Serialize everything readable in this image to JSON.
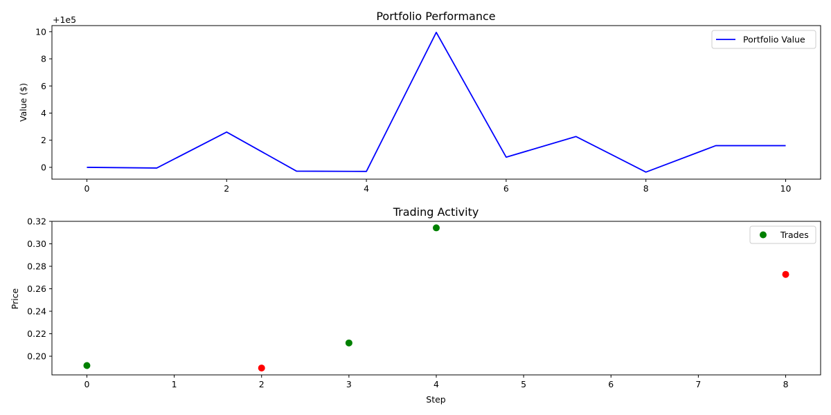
{
  "chart_data": [
    {
      "type": "line",
      "title": "Portfolio Performance",
      "xlabel": "",
      "ylabel": "Value ($)",
      "offset_label": "+1e5",
      "x": [
        0,
        1,
        2,
        3,
        4,
        5,
        6,
        7,
        8,
        9,
        10
      ],
      "series": [
        {
          "name": "Portfolio Value",
          "color": "#0000ff",
          "values": [
            0.0,
            -0.05,
            2.6,
            -0.28,
            -0.3,
            9.95,
            0.75,
            2.27,
            -0.35,
            1.6,
            1.6
          ]
        }
      ],
      "xlim": [
        -0.5,
        10.5
      ],
      "ylim": [
        -0.87,
        10.45
      ],
      "xticks": [
        0,
        2,
        4,
        6,
        8,
        10
      ],
      "xtick_labels": [
        "0",
        "2",
        "4",
        "6",
        "8",
        "10"
      ],
      "yticks": [
        0,
        2,
        4,
        6,
        8,
        10
      ],
      "ytick_labels": [
        "0",
        "2",
        "4",
        "6",
        "8",
        "10"
      ],
      "legend": "top-right",
      "grid": false
    },
    {
      "type": "scatter",
      "title": "Trading Activity",
      "xlabel": "Step",
      "ylabel": "Price",
      "points": [
        {
          "x": 0,
          "y": 0.1917,
          "color": "#008000"
        },
        {
          "x": 2,
          "y": 0.1895,
          "color": "#ff0000"
        },
        {
          "x": 3,
          "y": 0.2118,
          "color": "#008000"
        },
        {
          "x": 4,
          "y": 0.3142,
          "color": "#008000"
        },
        {
          "x": 8,
          "y": 0.2728,
          "color": "#ff0000"
        }
      ],
      "legend_entries": [
        {
          "name": "Trades",
          "color": "#008000"
        }
      ],
      "xlim": [
        -0.4,
        8.4
      ],
      "ylim": [
        0.1834,
        0.32
      ],
      "xticks": [
        0,
        1,
        2,
        3,
        4,
        5,
        6,
        7,
        8
      ],
      "xtick_labels": [
        "0",
        "1",
        "2",
        "3",
        "4",
        "5",
        "6",
        "7",
        "8"
      ],
      "yticks": [
        0.2,
        0.22,
        0.24,
        0.26,
        0.28,
        0.3,
        0.32
      ],
      "ytick_labels": [
        "0.20",
        "0.22",
        "0.24",
        "0.26",
        "0.28",
        "0.30",
        "0.32"
      ],
      "legend": "top-right",
      "grid": false
    }
  ]
}
